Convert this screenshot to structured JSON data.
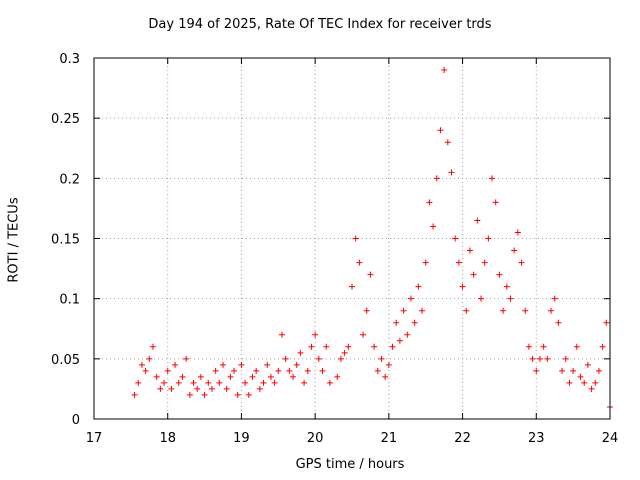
{
  "chart_data": {
    "type": "scatter",
    "title": "Day 194 of 2025, Rate Of TEC Index for receiver trds",
    "xlabel": "GPS time / hours",
    "ylabel": "ROTI / TECUs",
    "xlim": [
      17,
      24
    ],
    "ylim": [
      0,
      0.3
    ],
    "grid": true,
    "marker": "+",
    "marker_color": "#ff0000",
    "x_ticks": [
      17,
      18,
      19,
      20,
      21,
      22,
      23,
      24
    ],
    "x_tick_labels": [
      "17",
      "18",
      "19",
      "20",
      "21",
      "22",
      "23",
      "24"
    ],
    "y_ticks": [
      0,
      0.05,
      0.1,
      0.15,
      0.2,
      0.25,
      0.3
    ],
    "y_tick_labels": [
      "0",
      "0.05",
      "0.1",
      "0.15",
      "0.2",
      "0.25",
      "0.3"
    ],
    "series": [
      {
        "name": "ROTI",
        "points": [
          [
            17.55,
            0.02
          ],
          [
            17.6,
            0.03
          ],
          [
            17.65,
            0.045
          ],
          [
            17.7,
            0.04
          ],
          [
            17.75,
            0.05
          ],
          [
            17.8,
            0.06
          ],
          [
            17.85,
            0.035
          ],
          [
            17.9,
            0.025
          ],
          [
            17.95,
            0.03
          ],
          [
            18.0,
            0.04
          ],
          [
            18.05,
            0.025
          ],
          [
            18.1,
            0.045
          ],
          [
            18.15,
            0.03
          ],
          [
            18.2,
            0.035
          ],
          [
            18.25,
            0.05
          ],
          [
            18.3,
            0.02
          ],
          [
            18.35,
            0.03
          ],
          [
            18.4,
            0.025
          ],
          [
            18.45,
            0.035
          ],
          [
            18.5,
            0.02
          ],
          [
            18.55,
            0.03
          ],
          [
            18.6,
            0.025
          ],
          [
            18.65,
            0.04
          ],
          [
            18.7,
            0.03
          ],
          [
            18.75,
            0.045
          ],
          [
            18.8,
            0.025
          ],
          [
            18.85,
            0.035
          ],
          [
            18.9,
            0.04
          ],
          [
            18.95,
            0.02
          ],
          [
            19.0,
            0.045
          ],
          [
            19.05,
            0.03
          ],
          [
            19.1,
            0.02
          ],
          [
            19.15,
            0.035
          ],
          [
            19.2,
            0.04
          ],
          [
            19.25,
            0.025
          ],
          [
            19.3,
            0.03
          ],
          [
            19.35,
            0.045
          ],
          [
            19.4,
            0.035
          ],
          [
            19.45,
            0.03
          ],
          [
            19.5,
            0.04
          ],
          [
            19.55,
            0.07
          ],
          [
            19.6,
            0.05
          ],
          [
            19.65,
            0.04
          ],
          [
            19.7,
            0.035
          ],
          [
            19.75,
            0.045
          ],
          [
            19.8,
            0.055
          ],
          [
            19.85,
            0.03
          ],
          [
            19.9,
            0.04
          ],
          [
            19.95,
            0.06
          ],
          [
            20.0,
            0.07
          ],
          [
            20.05,
            0.05
          ],
          [
            20.1,
            0.04
          ],
          [
            20.15,
            0.06
          ],
          [
            20.2,
            0.03
          ],
          [
            20.3,
            0.035
          ],
          [
            20.35,
            0.05
          ],
          [
            20.4,
            0.055
          ],
          [
            20.45,
            0.06
          ],
          [
            20.5,
            0.11
          ],
          [
            20.55,
            0.15
          ],
          [
            20.6,
            0.13
          ],
          [
            20.65,
            0.07
          ],
          [
            20.7,
            0.09
          ],
          [
            20.75,
            0.12
          ],
          [
            20.8,
            0.06
          ],
          [
            20.85,
            0.04
          ],
          [
            20.9,
            0.05
          ],
          [
            20.95,
            0.035
          ],
          [
            21.0,
            0.045
          ],
          [
            21.05,
            0.06
          ],
          [
            21.1,
            0.08
          ],
          [
            21.15,
            0.065
          ],
          [
            21.2,
            0.09
          ],
          [
            21.25,
            0.07
          ],
          [
            21.3,
            0.1
          ],
          [
            21.35,
            0.08
          ],
          [
            21.4,
            0.11
          ],
          [
            21.45,
            0.09
          ],
          [
            21.5,
            0.13
          ],
          [
            21.55,
            0.18
          ],
          [
            21.6,
            0.16
          ],
          [
            21.65,
            0.2
          ],
          [
            21.7,
            0.24
          ],
          [
            21.75,
            0.29
          ],
          [
            21.8,
            0.23
          ],
          [
            21.85,
            0.205
          ],
          [
            21.9,
            0.15
          ],
          [
            21.95,
            0.13
          ],
          [
            22.0,
            0.11
          ],
          [
            22.05,
            0.09
          ],
          [
            22.1,
            0.14
          ],
          [
            22.15,
            0.12
          ],
          [
            22.2,
            0.165
          ],
          [
            22.25,
            0.1
          ],
          [
            22.3,
            0.13
          ],
          [
            22.35,
            0.15
          ],
          [
            22.4,
            0.2
          ],
          [
            22.45,
            0.18
          ],
          [
            22.5,
            0.12
          ],
          [
            22.55,
            0.09
          ],
          [
            22.6,
            0.11
          ],
          [
            22.65,
            0.1
          ],
          [
            22.7,
            0.14
          ],
          [
            22.75,
            0.155
          ],
          [
            22.8,
            0.13
          ],
          [
            22.85,
            0.09
          ],
          [
            22.9,
            0.06
          ],
          [
            22.95,
            0.05
          ],
          [
            23.0,
            0.04
          ],
          [
            23.05,
            0.05
          ],
          [
            23.1,
            0.06
          ],
          [
            23.15,
            0.05
          ],
          [
            23.2,
            0.09
          ],
          [
            23.25,
            0.1
          ],
          [
            23.3,
            0.08
          ],
          [
            23.35,
            0.04
          ],
          [
            23.4,
            0.05
          ],
          [
            23.45,
            0.03
          ],
          [
            23.5,
            0.04
          ],
          [
            23.55,
            0.06
          ],
          [
            23.6,
            0.035
          ],
          [
            23.65,
            0.03
          ],
          [
            23.7,
            0.045
          ],
          [
            23.75,
            0.025
          ],
          [
            23.8,
            0.03
          ],
          [
            23.85,
            0.04
          ],
          [
            23.9,
            0.06
          ],
          [
            23.95,
            0.08
          ],
          [
            24.0,
            0.01
          ]
        ]
      }
    ]
  }
}
